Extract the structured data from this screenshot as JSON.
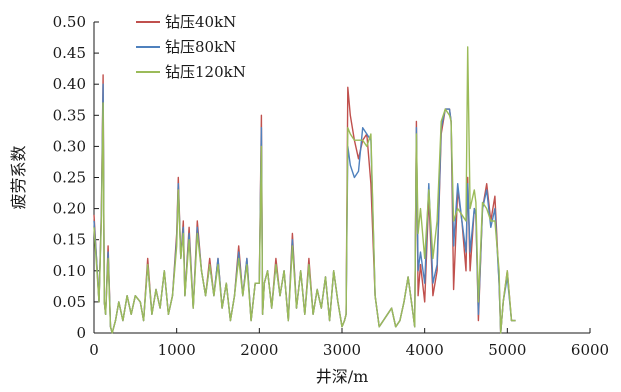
{
  "chart_data": {
    "type": "line",
    "title": "",
    "xlabel": "井深/m",
    "ylabel": "疲劳系数",
    "xlim": [
      0,
      6000
    ],
    "ylim": [
      0,
      0.5
    ],
    "xticks": [
      0,
      1000,
      2000,
      3000,
      4000,
      5000,
      6000
    ],
    "xtick_labels": [
      "0",
      "1000",
      "2000",
      "3000",
      "4000",
      "5000",
      "6000"
    ],
    "yticks": [
      0,
      0.05,
      0.1,
      0.15,
      0.2,
      0.25,
      0.3,
      0.35,
      0.4,
      0.45,
      0.5
    ],
    "ytick_labels": [
      "0",
      "0.05",
      "0.10",
      "0.15",
      "0.20",
      "0.25",
      "0.30",
      "0.35",
      "0.40",
      "0.45",
      "0.50"
    ],
    "grid": false,
    "legend_position": "top-left",
    "series": [
      {
        "name": "钻压40kN",
        "color": "#c0504d",
        "x": [
          0,
          30,
          60,
          90,
          110,
          125,
          140,
          170,
          200,
          220,
          260,
          300,
          350,
          400,
          450,
          500,
          560,
          600,
          650,
          700,
          750,
          800,
          850,
          900,
          950,
          1000,
          1020,
          1050,
          1080,
          1100,
          1150,
          1200,
          1250,
          1300,
          1350,
          1400,
          1450,
          1500,
          1550,
          1600,
          1650,
          1700,
          1750,
          1800,
          1850,
          1900,
          1950,
          2000,
          2025,
          2040,
          2060,
          2100,
          2150,
          2200,
          2250,
          2300,
          2350,
          2400,
          2450,
          2500,
          2550,
          2600,
          2650,
          2700,
          2750,
          2800,
          2850,
          2900,
          2950,
          3000,
          3030,
          3050,
          3070,
          3100,
          3150,
          3200,
          3250,
          3300,
          3350,
          3400,
          3450,
          3500,
          3550,
          3600,
          3650,
          3700,
          3750,
          3800,
          3850,
          3880,
          3900,
          3920,
          3950,
          4000,
          4050,
          4100,
          4150,
          4200,
          4250,
          4300,
          4320,
          4350,
          4400,
          4450,
          4500,
          4520,
          4550,
          4600,
          4620,
          4650,
          4700,
          4750,
          4800,
          4850,
          4900,
          4920,
          4950,
          5000,
          5050,
          5100
        ],
        "values": [
          0.19,
          0.12,
          0.05,
          0.2,
          0.415,
          0.05,
          0.03,
          0.14,
          0.01,
          0.0,
          0.02,
          0.05,
          0.02,
          0.06,
          0.03,
          0.06,
          0.05,
          0.02,
          0.12,
          0.03,
          0.07,
          0.04,
          0.1,
          0.03,
          0.06,
          0.16,
          0.25,
          0.12,
          0.18,
          0.06,
          0.17,
          0.04,
          0.18,
          0.1,
          0.06,
          0.12,
          0.06,
          0.12,
          0.04,
          0.08,
          0.02,
          0.06,
          0.14,
          0.06,
          0.12,
          0.02,
          0.08,
          0.08,
          0.35,
          0.03,
          0.08,
          0.1,
          0.04,
          0.12,
          0.06,
          0.1,
          0.02,
          0.16,
          0.04,
          0.1,
          0.03,
          0.12,
          0.03,
          0.07,
          0.04,
          0.09,
          0.02,
          0.1,
          0.05,
          0.01,
          0.02,
          0.03,
          0.395,
          0.35,
          0.31,
          0.28,
          0.31,
          0.32,
          0.24,
          0.06,
          0.01,
          0.02,
          0.03,
          0.04,
          0.01,
          0.02,
          0.05,
          0.09,
          0.04,
          0.01,
          0.34,
          0.06,
          0.11,
          0.05,
          0.22,
          0.06,
          0.1,
          0.32,
          0.36,
          0.36,
          0.34,
          0.07,
          0.23,
          0.18,
          0.1,
          0.25,
          0.1,
          0.2,
          0.19,
          0.02,
          0.2,
          0.24,
          0.18,
          0.22,
          0.08,
          0.0,
          0.05,
          0.1,
          0.02,
          0.02
        ]
      },
      {
        "name": "钻压80kN",
        "color": "#4f81bd",
        "x": [
          0,
          30,
          60,
          90,
          110,
          125,
          140,
          170,
          200,
          220,
          260,
          300,
          350,
          400,
          450,
          500,
          560,
          600,
          650,
          700,
          750,
          800,
          850,
          900,
          950,
          1000,
          1020,
          1050,
          1080,
          1100,
          1150,
          1200,
          1250,
          1300,
          1350,
          1400,
          1450,
          1500,
          1550,
          1600,
          1650,
          1700,
          1750,
          1800,
          1850,
          1900,
          1950,
          2000,
          2025,
          2040,
          2060,
          2100,
          2150,
          2200,
          2250,
          2300,
          2350,
          2400,
          2450,
          2500,
          2550,
          2600,
          2650,
          2700,
          2750,
          2800,
          2850,
          2900,
          2950,
          3000,
          3030,
          3050,
          3070,
          3100,
          3150,
          3200,
          3250,
          3300,
          3350,
          3400,
          3450,
          3500,
          3550,
          3600,
          3650,
          3700,
          3750,
          3800,
          3850,
          3880,
          3900,
          3920,
          3950,
          4000,
          4050,
          4100,
          4150,
          4200,
          4250,
          4300,
          4320,
          4350,
          4400,
          4450,
          4500,
          4520,
          4550,
          4600,
          4620,
          4650,
          4700,
          4750,
          4800,
          4850,
          4900,
          4920,
          4950,
          5000,
          5050,
          5100
        ],
        "values": [
          0.18,
          0.12,
          0.05,
          0.19,
          0.4,
          0.05,
          0.03,
          0.13,
          0.01,
          0.0,
          0.02,
          0.05,
          0.02,
          0.06,
          0.03,
          0.06,
          0.05,
          0.02,
          0.11,
          0.03,
          0.07,
          0.04,
          0.1,
          0.03,
          0.06,
          0.15,
          0.24,
          0.12,
          0.17,
          0.06,
          0.16,
          0.04,
          0.17,
          0.1,
          0.06,
          0.11,
          0.06,
          0.12,
          0.04,
          0.08,
          0.02,
          0.06,
          0.13,
          0.06,
          0.12,
          0.02,
          0.08,
          0.08,
          0.33,
          0.03,
          0.08,
          0.1,
          0.04,
          0.11,
          0.06,
          0.1,
          0.02,
          0.15,
          0.04,
          0.1,
          0.03,
          0.11,
          0.03,
          0.07,
          0.04,
          0.09,
          0.02,
          0.1,
          0.05,
          0.01,
          0.02,
          0.03,
          0.3,
          0.27,
          0.25,
          0.26,
          0.33,
          0.32,
          0.31,
          0.06,
          0.01,
          0.02,
          0.03,
          0.04,
          0.01,
          0.02,
          0.05,
          0.09,
          0.04,
          0.01,
          0.33,
          0.1,
          0.13,
          0.08,
          0.24,
          0.08,
          0.11,
          0.33,
          0.36,
          0.36,
          0.34,
          0.14,
          0.24,
          0.18,
          0.13,
          0.24,
          0.13,
          0.2,
          0.19,
          0.03,
          0.2,
          0.23,
          0.17,
          0.2,
          0.08,
          0.0,
          0.05,
          0.09,
          0.02,
          0.02
        ]
      },
      {
        "name": "钻压120kN",
        "color": "#9bbb59",
        "x": [
          0,
          30,
          60,
          90,
          110,
          125,
          140,
          170,
          200,
          220,
          260,
          300,
          350,
          400,
          450,
          500,
          560,
          600,
          650,
          700,
          750,
          800,
          850,
          900,
          950,
          1000,
          1020,
          1050,
          1080,
          1100,
          1150,
          1200,
          1250,
          1300,
          1350,
          1400,
          1450,
          1500,
          1550,
          1600,
          1650,
          1700,
          1750,
          1800,
          1850,
          1900,
          1950,
          2000,
          2025,
          2040,
          2060,
          2100,
          2150,
          2200,
          2250,
          2300,
          2350,
          2400,
          2450,
          2500,
          2550,
          2600,
          2650,
          2700,
          2750,
          2800,
          2850,
          2900,
          2950,
          3000,
          3030,
          3050,
          3070,
          3100,
          3150,
          3200,
          3250,
          3300,
          3350,
          3400,
          3450,
          3500,
          3550,
          3600,
          3650,
          3700,
          3750,
          3800,
          3850,
          3880,
          3900,
          3920,
          3950,
          4000,
          4050,
          4100,
          4150,
          4200,
          4250,
          4300,
          4320,
          4350,
          4400,
          4450,
          4500,
          4520,
          4550,
          4600,
          4620,
          4650,
          4700,
          4750,
          4800,
          4850,
          4900,
          4920,
          4950,
          5000,
          5050,
          5100
        ],
        "values": [
          0.17,
          0.11,
          0.05,
          0.18,
          0.37,
          0.05,
          0.03,
          0.12,
          0.01,
          0.0,
          0.02,
          0.05,
          0.02,
          0.06,
          0.03,
          0.06,
          0.05,
          0.02,
          0.11,
          0.03,
          0.07,
          0.04,
          0.1,
          0.03,
          0.06,
          0.14,
          0.23,
          0.12,
          0.16,
          0.06,
          0.15,
          0.04,
          0.16,
          0.1,
          0.06,
          0.11,
          0.06,
          0.11,
          0.04,
          0.08,
          0.02,
          0.06,
          0.12,
          0.06,
          0.11,
          0.02,
          0.08,
          0.08,
          0.3,
          0.03,
          0.08,
          0.1,
          0.04,
          0.11,
          0.06,
          0.1,
          0.02,
          0.14,
          0.04,
          0.1,
          0.03,
          0.11,
          0.03,
          0.07,
          0.04,
          0.09,
          0.02,
          0.1,
          0.05,
          0.01,
          0.02,
          0.03,
          0.33,
          0.32,
          0.31,
          0.31,
          0.31,
          0.3,
          0.32,
          0.06,
          0.01,
          0.02,
          0.03,
          0.04,
          0.01,
          0.02,
          0.05,
          0.09,
          0.04,
          0.01,
          0.32,
          0.16,
          0.2,
          0.12,
          0.23,
          0.12,
          0.18,
          0.34,
          0.36,
          0.35,
          0.34,
          0.18,
          0.2,
          0.19,
          0.18,
          0.46,
          0.2,
          0.23,
          0.21,
          0.05,
          0.21,
          0.2,
          0.18,
          0.18,
          0.1,
          0.0,
          0.05,
          0.1,
          0.02,
          0.02
        ]
      }
    ]
  }
}
